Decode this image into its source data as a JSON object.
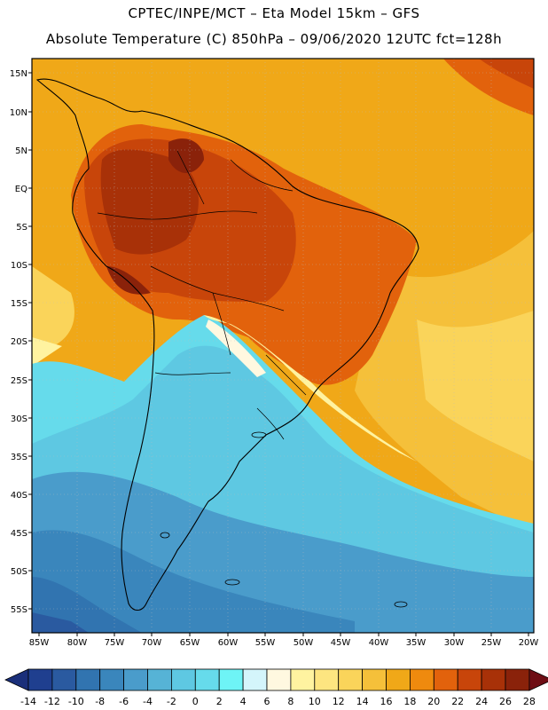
{
  "header": {
    "title_line1": "CPTEC/INPE/MCT –  Eta Model 15km – GFS",
    "title_line2": "Absolute Temperature (C) 850hPa – 09/06/2020 12UTC fct=128h"
  },
  "map": {
    "lon_labels": [
      "85W",
      "80W",
      "75W",
      "70W",
      "65W",
      "60W",
      "55W",
      "50W",
      "45W",
      "40W",
      "35W",
      "30W",
      "25W",
      "20W"
    ],
    "lat_labels": [
      "15N",
      "10N",
      "5N",
      "EQ",
      "5S",
      "10S",
      "15S",
      "20S",
      "25S",
      "30S",
      "35S",
      "40S",
      "45S",
      "50S",
      "55S"
    ]
  },
  "colorbar": {
    "labels": [
      "-14",
      "-12",
      "-10",
      "-8",
      "-6",
      "-4",
      "-2",
      "0",
      "2",
      "4",
      "6",
      "8",
      "10",
      "12",
      "14",
      "16",
      "18",
      "20",
      "22",
      "24",
      "26",
      "28"
    ],
    "colors": [
      "#1f3f8f",
      "#2a5aa0",
      "#3174b0",
      "#3a86bc",
      "#4a9ccb",
      "#56b3d6",
      "#5ec8e2",
      "#66dbeb",
      "#6ef4f6",
      "#d4f5fb",
      "#fff8e0",
      "#fff3a0",
      "#fde580",
      "#fad45a",
      "#f5c03a",
      "#f0a818",
      "#ef8a0e",
      "#e2620c",
      "#c8450a",
      "#a83108",
      "#8a220a"
    ],
    "low_color": "#1a2f7a",
    "high_color": "#6e0d14"
  }
}
